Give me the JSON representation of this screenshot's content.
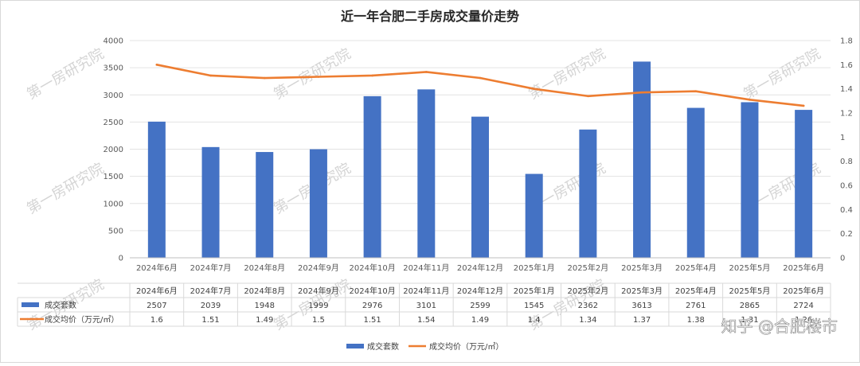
{
  "chart_data": {
    "type": "bar",
    "title": "近一年合肥二手房成交量价走势",
    "categories": [
      "2024年6月",
      "2024年7月",
      "2024年8月",
      "2024年9月",
      "2024年10月",
      "2024年11月",
      "2024年12月",
      "2025年1月",
      "2025年2月",
      "2025年3月",
      "2025年4月",
      "2025年5月",
      "2025年6月"
    ],
    "series": [
      {
        "name": "成交套数",
        "type": "bar",
        "axis": "left",
        "color": "#4472c4",
        "values": [
          2507,
          2039,
          1948,
          1999,
          2976,
          3101,
          2599,
          1545,
          2362,
          3613,
          2761,
          2865,
          2724
        ]
      },
      {
        "name": "成交均价（万元/㎡）",
        "type": "line",
        "axis": "right",
        "color": "#ed7d31",
        "values": [
          1.6,
          1.51,
          1.49,
          1.5,
          1.51,
          1.54,
          1.49,
          1.4,
          1.34,
          1.37,
          1.38,
          1.31,
          1.26
        ]
      }
    ],
    "ylim_left": [
      0,
      4000
    ],
    "yticks_left": [
      "0",
      "500",
      "1000",
      "1500",
      "2000",
      "2500",
      "3000",
      "3500",
      "4000"
    ],
    "ylim_right": [
      0,
      1.8
    ],
    "yticks_right": [
      "0",
      "0.2",
      "0.4",
      "0.6",
      "0.8",
      "1",
      "1.2",
      "1.4",
      "1.6",
      "1.8"
    ],
    "table_rows": [
      {
        "label": "成交套数",
        "cells": [
          "2507",
          "2039",
          "1948",
          "1999",
          "2976",
          "3101",
          "2599",
          "1545",
          "2362",
          "3613",
          "2761",
          "2865",
          "2724"
        ]
      },
      {
        "label": "成交均价（万元/㎡）",
        "cells": [
          "1.6",
          "1.51",
          "1.49",
          "1.5",
          "1.51",
          "1.54",
          "1.49",
          "1.4",
          "1.34",
          "1.37",
          "1.38",
          "1.31",
          "1.26"
        ]
      }
    ],
    "legend": [
      "成交套数",
      "成交均价（万元/㎡）"
    ],
    "grid": true,
    "watermark": "第一房研究院",
    "credit": "知乎 @合肥楼市"
  }
}
